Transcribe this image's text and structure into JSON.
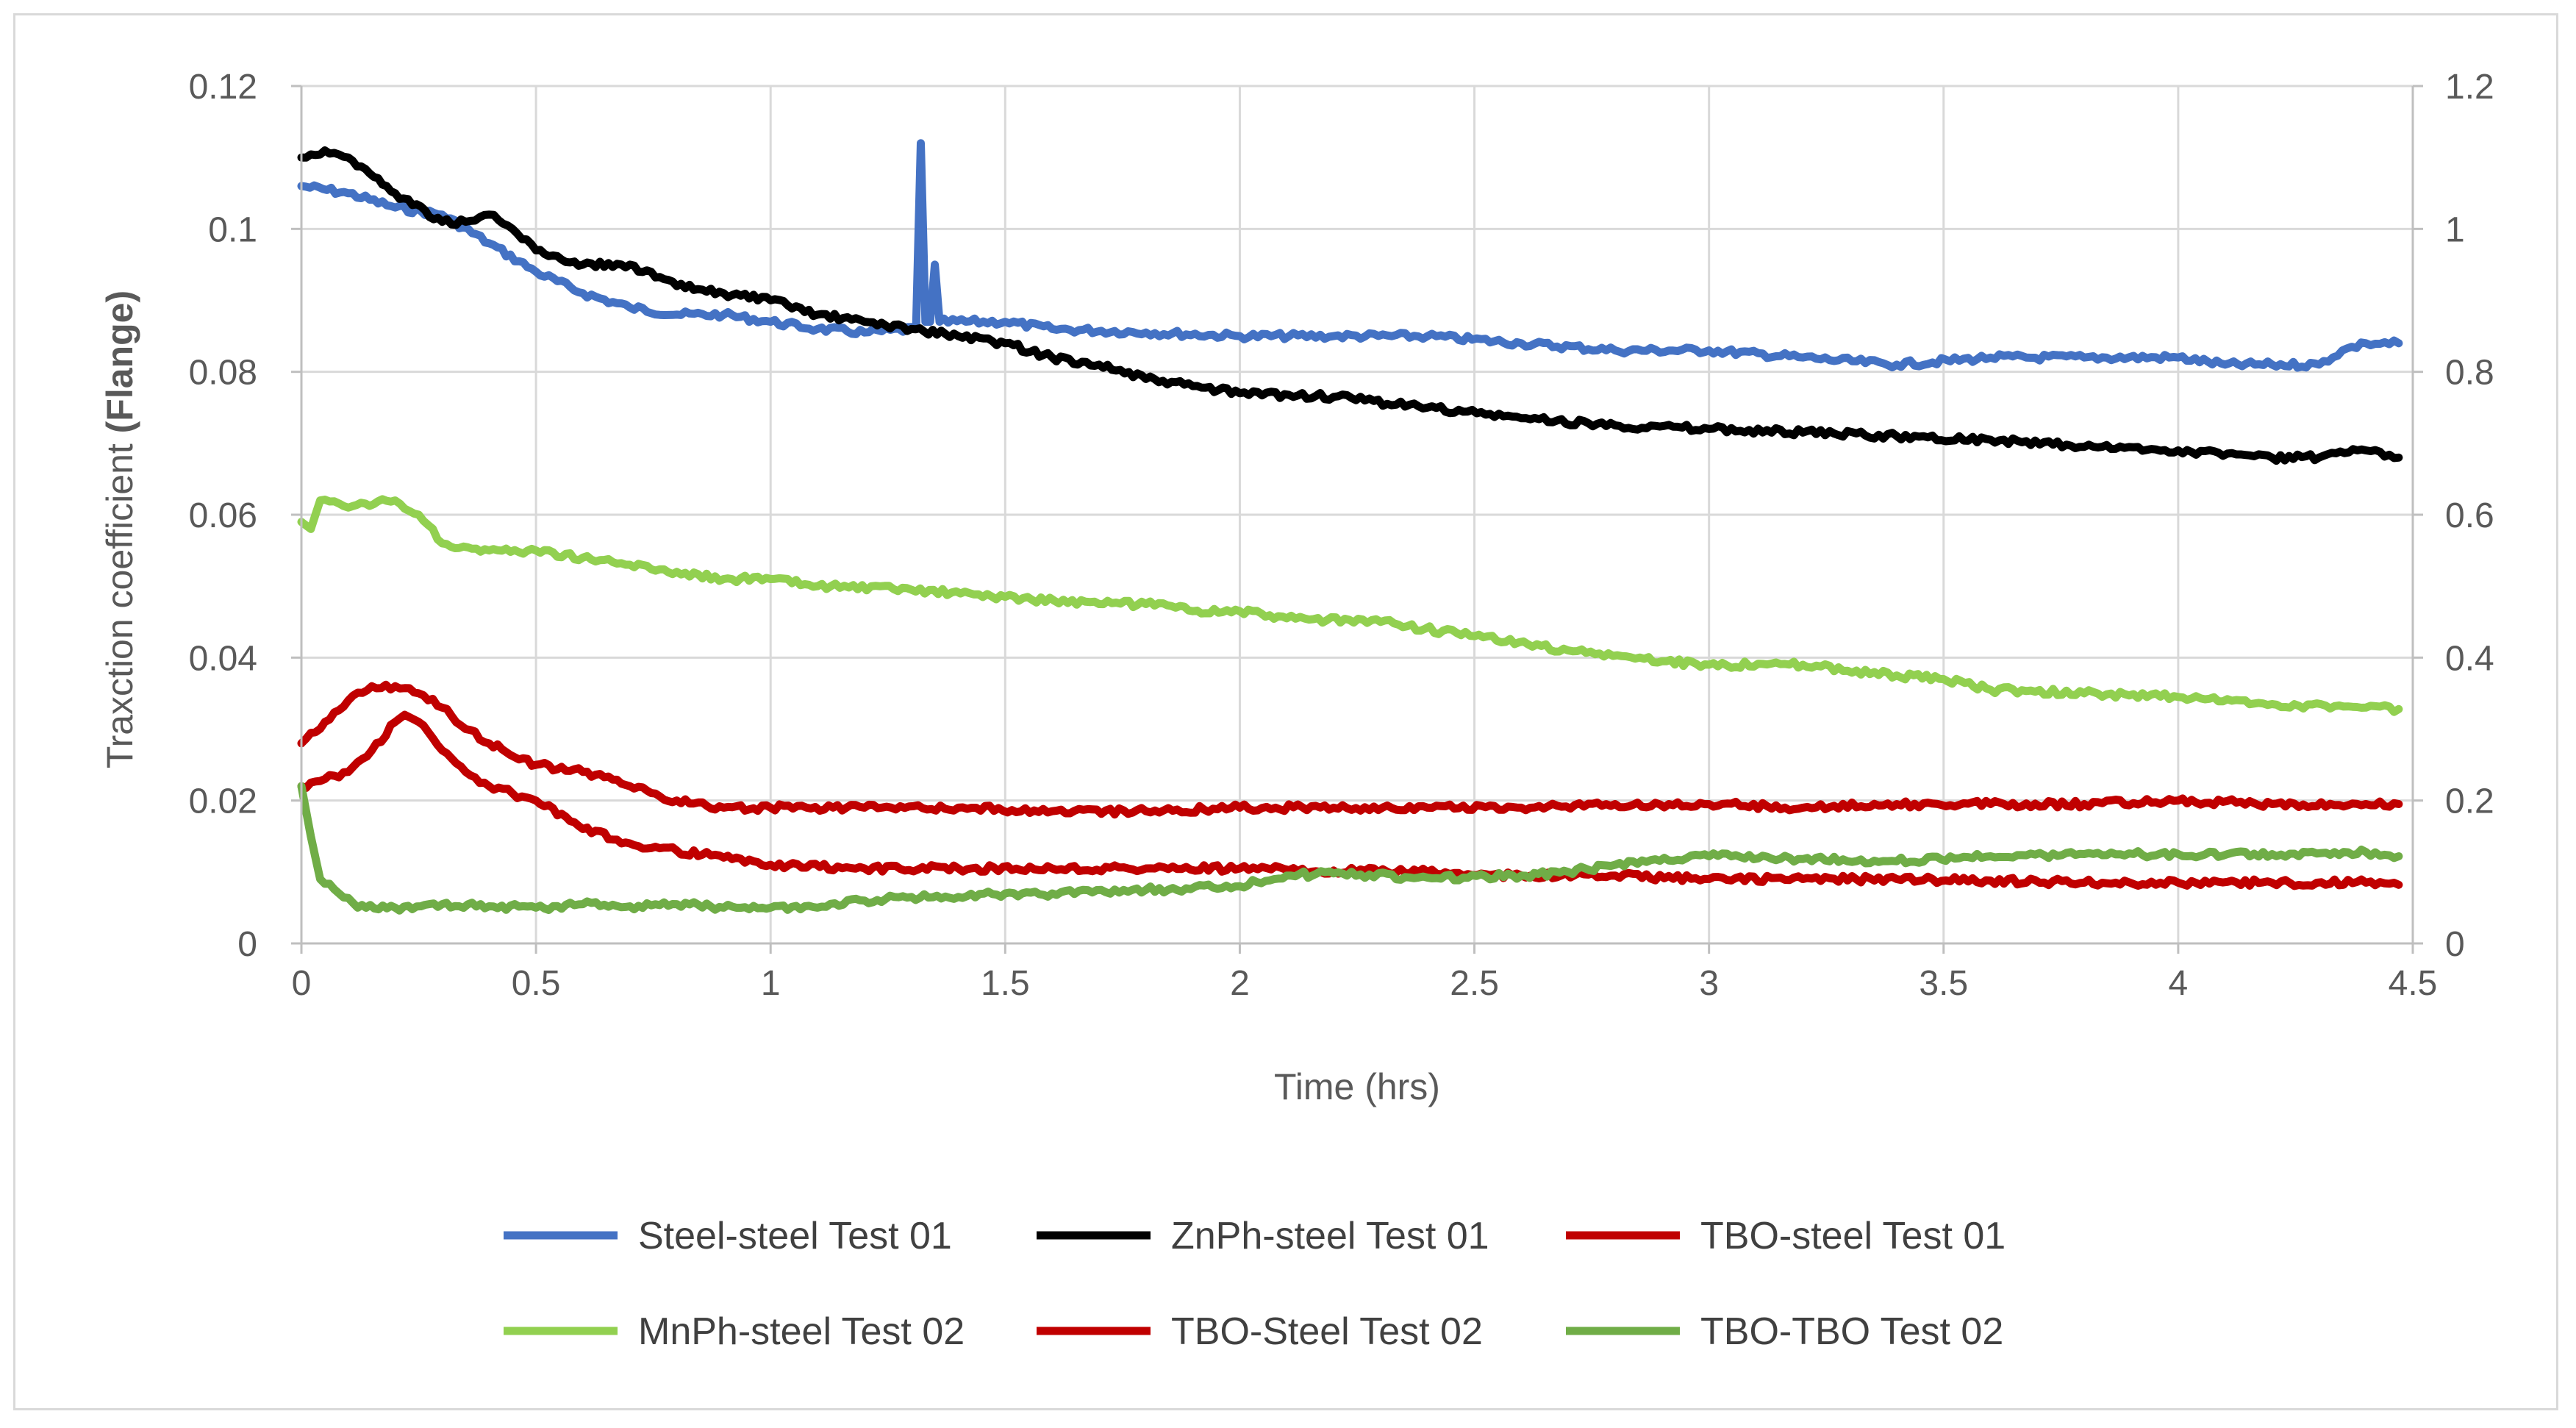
{
  "chart_data": {
    "type": "line",
    "title": "",
    "xlabel": "Time (hrs)",
    "ylabel_prefix": "Traxction coefficient ",
    "ylabel_bold": "(Flange)",
    "xlim": [
      0,
      4.5
    ],
    "ylim": [
      0,
      0.12
    ],
    "y2lim": [
      0,
      1.2
    ],
    "x_ticks": [
      "0",
      "0.5",
      "1",
      "1.5",
      "2",
      "2.5",
      "3",
      "3.5",
      "4",
      "4.5"
    ],
    "y_ticks": [
      "0",
      "0.02",
      "0.04",
      "0.06",
      "0.08",
      "0.1",
      "0.12"
    ],
    "y2_ticks": [
      "0",
      "0.2",
      "0.4",
      "0.6",
      "0.8",
      "1",
      "1.2"
    ],
    "grid": true,
    "legend_position": "bottom",
    "series": [
      {
        "name": "Steel-steel Test 01",
        "color": "#4472c4",
        "points": [
          [
            0,
            0.106
          ],
          [
            0.1,
            0.105
          ],
          [
            0.2,
            0.103
          ],
          [
            0.3,
            0.102
          ],
          [
            0.4,
            0.098
          ],
          [
            0.5,
            0.094
          ],
          [
            0.6,
            0.091
          ],
          [
            0.7,
            0.089
          ],
          [
            0.8,
            0.088
          ],
          [
            0.9,
            0.088
          ],
          [
            1.0,
            0.087
          ],
          [
            1.1,
            0.086
          ],
          [
            1.2,
            0.0855
          ],
          [
            1.31,
            0.086
          ],
          [
            1.32,
            0.112
          ],
          [
            1.33,
            0.087
          ],
          [
            1.34,
            0.087
          ],
          [
            1.35,
            0.095
          ],
          [
            1.36,
            0.087
          ],
          [
            1.5,
            0.087
          ],
          [
            1.6,
            0.086
          ],
          [
            1.8,
            0.0855
          ],
          [
            2.0,
            0.085
          ],
          [
            2.2,
            0.085
          ],
          [
            2.4,
            0.085
          ],
          [
            2.6,
            0.084
          ],
          [
            2.8,
            0.083
          ],
          [
            3.0,
            0.083
          ],
          [
            3.2,
            0.082
          ],
          [
            3.4,
            0.081
          ],
          [
            3.6,
            0.082
          ],
          [
            3.8,
            0.082
          ],
          [
            4.0,
            0.082
          ],
          [
            4.1,
            0.081
          ],
          [
            4.2,
            0.081
          ],
          [
            4.3,
            0.081
          ],
          [
            4.35,
            0.083
          ],
          [
            4.4,
            0.084
          ],
          [
            4.47,
            0.084
          ]
        ]
      },
      {
        "name": "ZnPh-steel Test 01",
        "color": "#000000",
        "points": [
          [
            0,
            0.11
          ],
          [
            0.05,
            0.111
          ],
          [
            0.1,
            0.11
          ],
          [
            0.2,
            0.105
          ],
          [
            0.3,
            0.101
          ],
          [
            0.35,
            0.101
          ],
          [
            0.4,
            0.102
          ],
          [
            0.45,
            0.1
          ],
          [
            0.5,
            0.097
          ],
          [
            0.6,
            0.095
          ],
          [
            0.7,
            0.095
          ],
          [
            0.8,
            0.092
          ],
          [
            0.9,
            0.091
          ],
          [
            1.0,
            0.09
          ],
          [
            1.1,
            0.088
          ],
          [
            1.2,
            0.087
          ],
          [
            1.3,
            0.086
          ],
          [
            1.4,
            0.085
          ],
          [
            1.5,
            0.084
          ],
          [
            1.6,
            0.082
          ],
          [
            1.7,
            0.081
          ],
          [
            1.8,
            0.079
          ],
          [
            1.9,
            0.078
          ],
          [
            2.0,
            0.077
          ],
          [
            2.2,
            0.0765
          ],
          [
            2.4,
            0.075
          ],
          [
            2.6,
            0.0735
          ],
          [
            2.8,
            0.0725
          ],
          [
            3.0,
            0.072
          ],
          [
            3.2,
            0.0715
          ],
          [
            3.4,
            0.071
          ],
          [
            3.6,
            0.0705
          ],
          [
            3.8,
            0.0695
          ],
          [
            4.0,
            0.069
          ],
          [
            4.2,
            0.068
          ],
          [
            4.3,
            0.068
          ],
          [
            4.4,
            0.069
          ],
          [
            4.47,
            0.068
          ]
        ]
      },
      {
        "name": "TBO-steel Test 01",
        "color": "#c00000",
        "points": [
          [
            0,
            0.022
          ],
          [
            0.05,
            0.023
          ],
          [
            0.1,
            0.024
          ],
          [
            0.15,
            0.027
          ],
          [
            0.2,
            0.031
          ],
          [
            0.22,
            0.032
          ],
          [
            0.25,
            0.031
          ],
          [
            0.3,
            0.027
          ],
          [
            0.35,
            0.024
          ],
          [
            0.4,
            0.022
          ],
          [
            0.45,
            0.021
          ],
          [
            0.5,
            0.02
          ],
          [
            0.6,
            0.016
          ],
          [
            0.7,
            0.014
          ],
          [
            0.8,
            0.013
          ],
          [
            0.9,
            0.012
          ],
          [
            1.0,
            0.011
          ],
          [
            1.2,
            0.0105
          ],
          [
            1.4,
            0.0105
          ],
          [
            1.6,
            0.0105
          ],
          [
            1.8,
            0.0105
          ],
          [
            2.0,
            0.0105
          ],
          [
            2.2,
            0.0102
          ],
          [
            2.4,
            0.01
          ],
          [
            2.6,
            0.0095
          ],
          [
            2.8,
            0.0095
          ],
          [
            3.0,
            0.009
          ],
          [
            3.2,
            0.009
          ],
          [
            3.4,
            0.009
          ],
          [
            3.6,
            0.0088
          ],
          [
            3.8,
            0.0085
          ],
          [
            4.0,
            0.0085
          ],
          [
            4.2,
            0.0085
          ],
          [
            4.4,
            0.0085
          ],
          [
            4.47,
            0.0082
          ]
        ]
      },
      {
        "name": "MnPh-steel Test 02",
        "color": "#92d050",
        "points": [
          [
            0,
            0.059
          ],
          [
            0.02,
            0.058
          ],
          [
            0.04,
            0.062
          ],
          [
            0.1,
            0.061
          ],
          [
            0.2,
            0.062
          ],
          [
            0.25,
            0.06
          ],
          [
            0.3,
            0.056
          ],
          [
            0.4,
            0.055
          ],
          [
            0.5,
            0.055
          ],
          [
            0.6,
            0.054
          ],
          [
            0.7,
            0.053
          ],
          [
            0.8,
            0.052
          ],
          [
            0.9,
            0.051
          ],
          [
            1.0,
            0.051
          ],
          [
            1.1,
            0.05
          ],
          [
            1.3,
            0.0495
          ],
          [
            1.5,
            0.0485
          ],
          [
            1.7,
            0.0475
          ],
          [
            1.8,
            0.0475
          ],
          [
            1.9,
            0.0465
          ],
          [
            2.0,
            0.0465
          ],
          [
            2.1,
            0.0455
          ],
          [
            2.3,
            0.045
          ],
          [
            2.5,
            0.043
          ],
          [
            2.7,
            0.041
          ],
          [
            2.9,
            0.0395
          ],
          [
            3.0,
            0.039
          ],
          [
            3.2,
            0.039
          ],
          [
            3.4,
            0.0375
          ],
          [
            3.5,
            0.037
          ],
          [
            3.6,
            0.0355
          ],
          [
            3.8,
            0.035
          ],
          [
            4.0,
            0.0345
          ],
          [
            4.2,
            0.0335
          ],
          [
            4.4,
            0.033
          ],
          [
            4.47,
            0.0328
          ]
        ]
      },
      {
        "name": "TBO-Steel Test 02",
        "color": "#c00000",
        "points": [
          [
            0,
            0.028
          ],
          [
            0.05,
            0.031
          ],
          [
            0.1,
            0.034
          ],
          [
            0.15,
            0.036
          ],
          [
            0.2,
            0.036
          ],
          [
            0.25,
            0.035
          ],
          [
            0.3,
            0.033
          ],
          [
            0.35,
            0.03
          ],
          [
            0.4,
            0.028
          ],
          [
            0.5,
            0.025
          ],
          [
            0.6,
            0.024
          ],
          [
            0.7,
            0.022
          ],
          [
            0.8,
            0.02
          ],
          [
            0.9,
            0.019
          ],
          [
            1.0,
            0.019
          ],
          [
            1.2,
            0.019
          ],
          [
            1.4,
            0.019
          ],
          [
            1.6,
            0.0185
          ],
          [
            1.8,
            0.0185
          ],
          [
            2.0,
            0.019
          ],
          [
            2.2,
            0.019
          ],
          [
            2.4,
            0.019
          ],
          [
            2.6,
            0.019
          ],
          [
            2.8,
            0.0195
          ],
          [
            3.0,
            0.0195
          ],
          [
            3.2,
            0.019
          ],
          [
            3.4,
            0.0195
          ],
          [
            3.6,
            0.0195
          ],
          [
            3.8,
            0.0195
          ],
          [
            4.0,
            0.02
          ],
          [
            4.2,
            0.0195
          ],
          [
            4.4,
            0.0195
          ],
          [
            4.47,
            0.0195
          ]
        ]
      },
      {
        "name": "TBO-TBO Test 02",
        "color": "#70ad47",
        "points": [
          [
            0,
            0.022
          ],
          [
            0.02,
            0.015
          ],
          [
            0.04,
            0.009
          ],
          [
            0.08,
            0.007
          ],
          [
            0.12,
            0.005
          ],
          [
            0.2,
            0.005
          ],
          [
            0.3,
            0.0055
          ],
          [
            0.4,
            0.0052
          ],
          [
            0.5,
            0.005
          ],
          [
            0.6,
            0.0055
          ],
          [
            0.7,
            0.0052
          ],
          [
            0.8,
            0.0055
          ],
          [
            0.9,
            0.005
          ],
          [
            1.0,
            0.005
          ],
          [
            1.1,
            0.005
          ],
          [
            1.2,
            0.006
          ],
          [
            1.3,
            0.0065
          ],
          [
            1.4,
            0.0065
          ],
          [
            1.5,
            0.007
          ],
          [
            1.6,
            0.007
          ],
          [
            1.8,
            0.0075
          ],
          [
            2.0,
            0.008
          ],
          [
            2.1,
            0.0095
          ],
          [
            2.2,
            0.0098
          ],
          [
            2.4,
            0.0092
          ],
          [
            2.6,
            0.0095
          ],
          [
            2.7,
            0.01
          ],
          [
            2.8,
            0.011
          ],
          [
            3.0,
            0.0122
          ],
          [
            3.2,
            0.0118
          ],
          [
            3.4,
            0.0115
          ],
          [
            3.6,
            0.0122
          ],
          [
            3.8,
            0.0125
          ],
          [
            4.0,
            0.0125
          ],
          [
            4.2,
            0.0125
          ],
          [
            4.4,
            0.0128
          ],
          [
            4.47,
            0.0122
          ]
        ]
      }
    ]
  }
}
